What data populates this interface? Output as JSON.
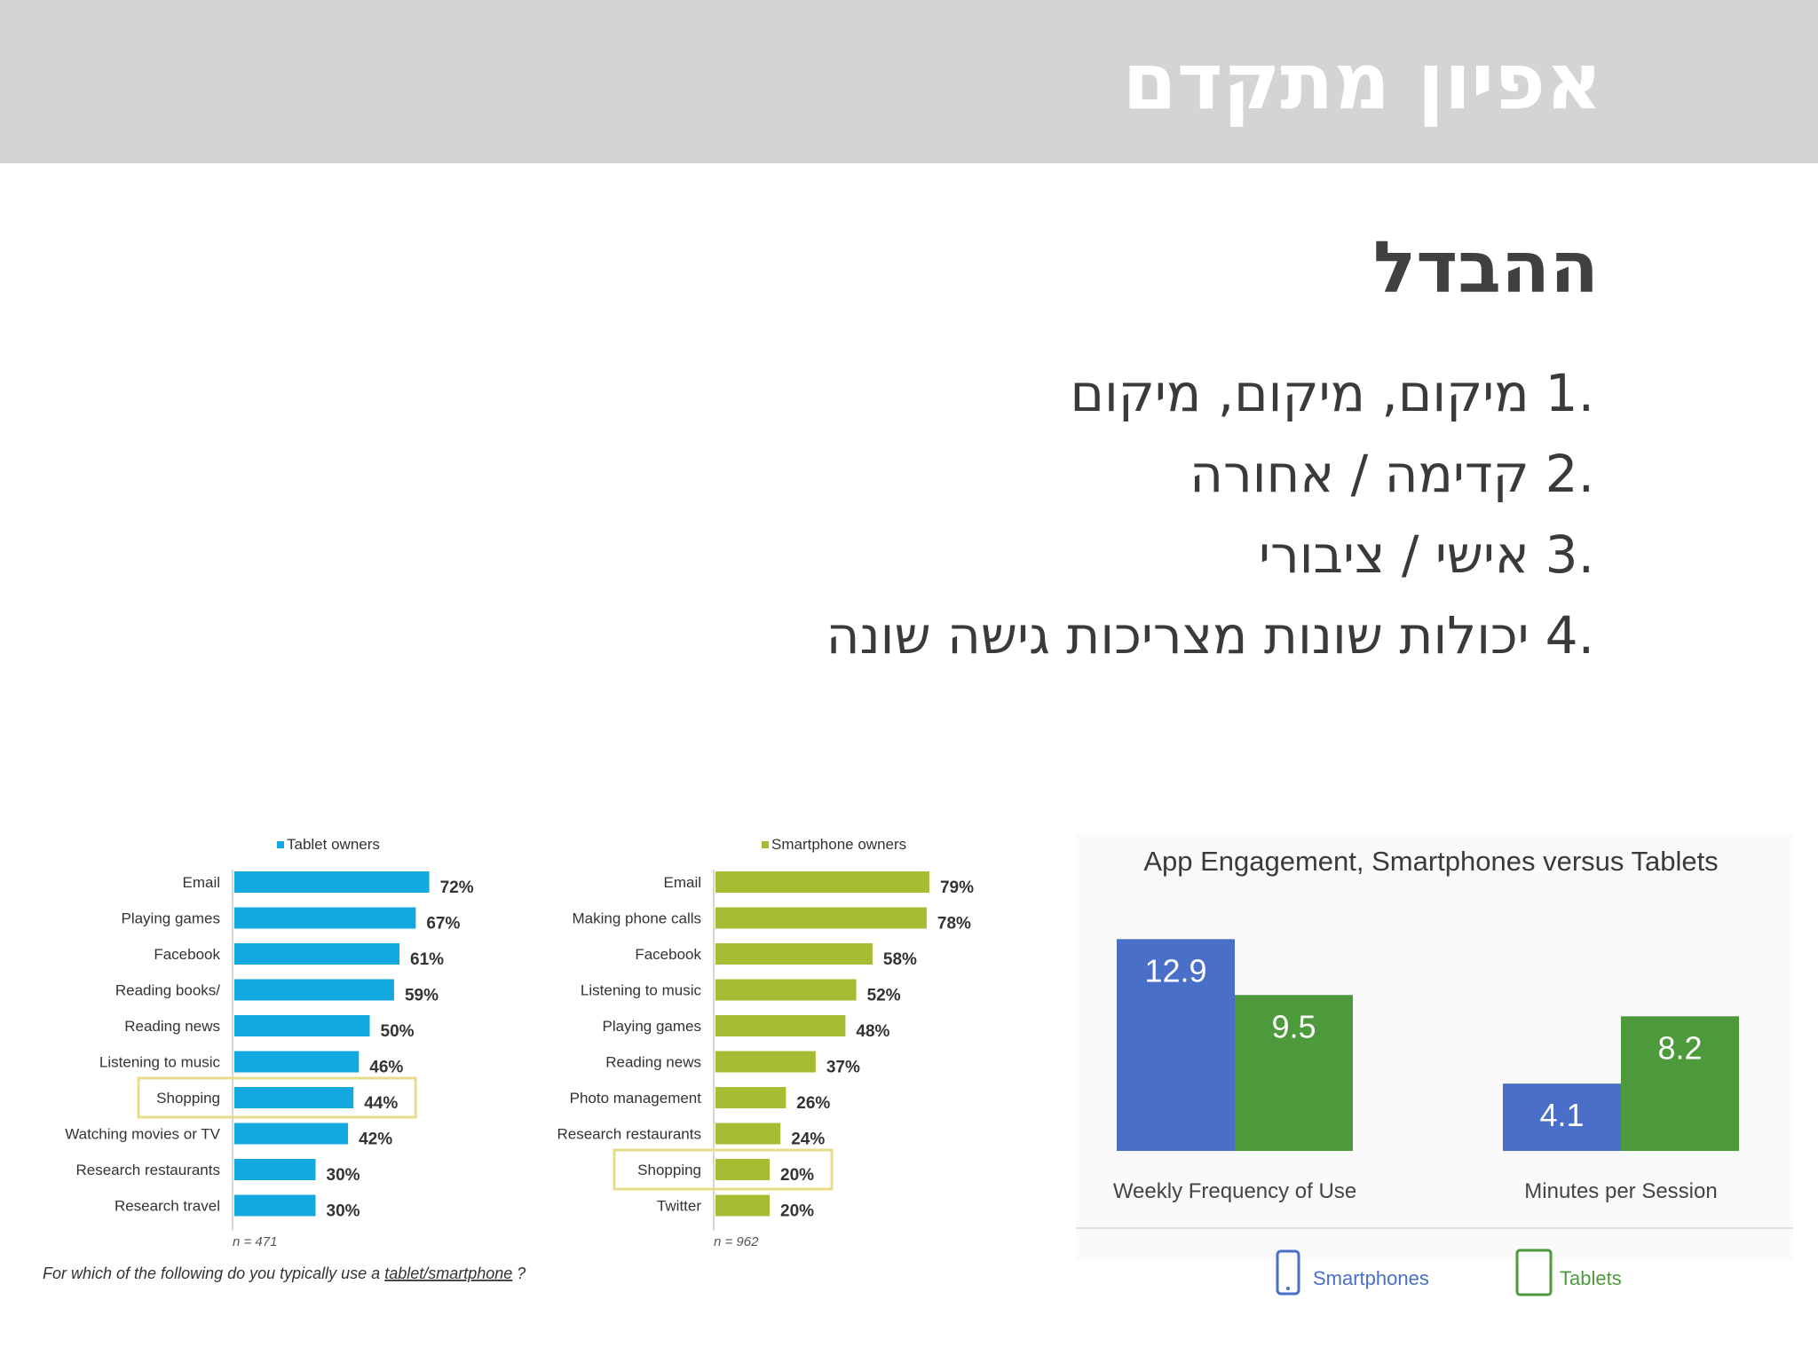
{
  "header": {
    "title": "אפיון מתקדם"
  },
  "slide": {
    "heading": "ההבדל",
    "items": [
      {
        "num": ".1",
        "text": "מיקום, מיקום, מיקום"
      },
      {
        "num": ".2",
        "text": "קדימה / אחורה"
      },
      {
        "num": ".3",
        "text": "אישי / ציבורי"
      },
      {
        "num": ".4",
        "text": "יכולות שונות מצריכות גישה שונה"
      }
    ]
  },
  "colors": {
    "tablet_bar": "#13a9e0",
    "smartphone_bar": "#a6bc32",
    "blue": "#4a6fc9",
    "green": "#4c9a3c",
    "highlight": "#e7dc8a"
  },
  "chart_data": [
    {
      "type": "bar",
      "orientation": "horizontal",
      "legend": "Tablet owners",
      "categories": [
        "Email",
        "Playing games",
        "Facebook",
        "Reading books/",
        "Reading news",
        "Listening to music",
        "Shopping",
        "Watching movies or TV",
        "Research restaurants",
        "Research travel"
      ],
      "values": [
        72,
        67,
        61,
        59,
        50,
        46,
        44,
        42,
        30,
        30
      ],
      "value_labels": [
        "72%",
        "67%",
        "61%",
        "59%",
        "50%",
        "46%",
        "44%",
        "42%",
        "30%",
        "30%"
      ],
      "highlighted": "Shopping",
      "note": "n = 471"
    },
    {
      "type": "bar",
      "orientation": "horizontal",
      "legend": "Smartphone owners",
      "categories": [
        "Email",
        "Making phone calls",
        "Facebook",
        "Listening to music",
        "Playing games",
        "Reading news",
        "Photo management",
        "Research restaurants",
        "Shopping",
        "Twitter"
      ],
      "values": [
        79,
        78,
        58,
        52,
        48,
        37,
        26,
        24,
        20,
        20
      ],
      "value_labels": [
        "79%",
        "78%",
        "58%",
        "52%",
        "48%",
        "37%",
        "26%",
        "24%",
        "20%",
        "20%"
      ],
      "highlighted": "Shopping",
      "note": "n = 962"
    },
    {
      "type": "bar",
      "title": "App Engagement, Smartphones versus Tablets",
      "categories": [
        "Weekly Frequency of Use",
        "Minutes per Session"
      ],
      "series": [
        {
          "name": "Smartphones",
          "values": [
            12.9,
            4.1
          ],
          "labels": [
            "12.9",
            "4.1"
          ]
        },
        {
          "name": "Tablets",
          "values": [
            9.5,
            8.2
          ],
          "labels": [
            "9.5",
            "8.2"
          ]
        }
      ]
    }
  ],
  "charts_question": {
    "prefix": "For which of the following do you typically use a ",
    "link": "tablet/smartphone",
    "suffix": " ?"
  }
}
